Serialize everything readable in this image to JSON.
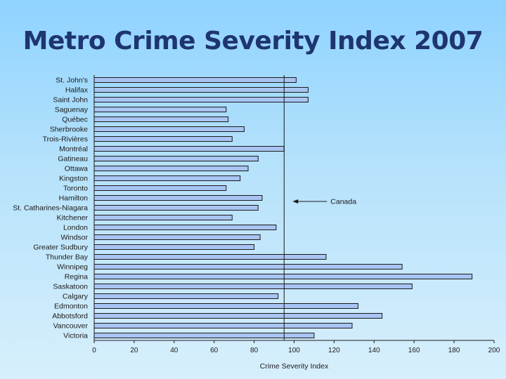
{
  "slide": {
    "title": "Metro Crime Severity Index 2007"
  },
  "chart_data": {
    "type": "bar",
    "orientation": "horizontal",
    "title": "",
    "xlabel": "Crime Severity Index",
    "ylabel": "",
    "xlim": [
      0,
      200
    ],
    "xticks": [
      0,
      20,
      40,
      60,
      80,
      100,
      120,
      140,
      160,
      180,
      200
    ],
    "categories": [
      "St. John's",
      "Halifax",
      "Saint John",
      "Saguenay",
      "Québec",
      "Sherbrooke",
      "Trois-Rivières",
      "Montréal",
      "Gatineau",
      "Ottawa",
      "Kingston",
      "Toronto",
      "Hamilton",
      "St. Catharines-Niagara",
      "Kitchener",
      "London",
      "Windsor",
      "Greater Sudbury",
      "Thunder Bay",
      "Winnipeg",
      "Regina",
      "Saskatoon",
      "Calgary",
      "Edmonton",
      "Abbotsford",
      "Vancouver",
      "Victoria"
    ],
    "values": [
      101,
      107,
      107,
      66,
      67,
      75,
      69,
      95,
      82,
      77,
      73,
      66,
      84,
      82,
      69,
      91,
      83,
      80,
      116,
      154,
      189,
      159,
      92,
      132,
      144,
      129,
      110
    ],
    "reference_line": {
      "label": "Canada",
      "value": 95
    },
    "bar_color": "#a8c4f2",
    "bar_stroke": "#1a1a1a",
    "grid": false,
    "legend": "none"
  }
}
